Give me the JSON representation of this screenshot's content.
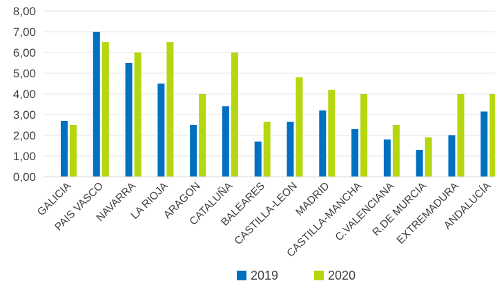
{
  "chart_data": {
    "type": "bar",
    "categories": [
      "GALICIA",
      "PAIS VASCO",
      "NAVARRA",
      "LA RIOJA",
      "ARAGON",
      "CATALUÑA",
      "BALEARES",
      "CASTILLA-LEON",
      "MADRID",
      "CASTILLA-MANCHA",
      "C.VALENCIANA",
      "R.DE MURCIA",
      "EXTREMADURA",
      "ANDALUCÍA"
    ],
    "series": [
      {
        "name": "2019",
        "color": "#0070C0",
        "values": [
          2.7,
          7.0,
          5.5,
          4.5,
          2.5,
          3.4,
          1.7,
          2.65,
          3.2,
          2.3,
          1.8,
          1.3,
          2.0,
          3.15
        ]
      },
      {
        "name": "2020",
        "color": "#B4D70F",
        "values": [
          2.5,
          6.5,
          6.0,
          6.5,
          4.0,
          6.0,
          2.65,
          4.8,
          4.2,
          4.0,
          2.5,
          1.9,
          4.0,
          4.0
        ]
      }
    ],
    "yticks": [
      "0,00",
      "1,00",
      "2,00",
      "3,00",
      "4,00",
      "5,00",
      "6,00",
      "7,00",
      "8,00"
    ],
    "ylim": [
      0,
      8
    ],
    "grid": true,
    "legend_position": "bottom",
    "title": "",
    "xlabel": "",
    "ylabel": ""
  }
}
